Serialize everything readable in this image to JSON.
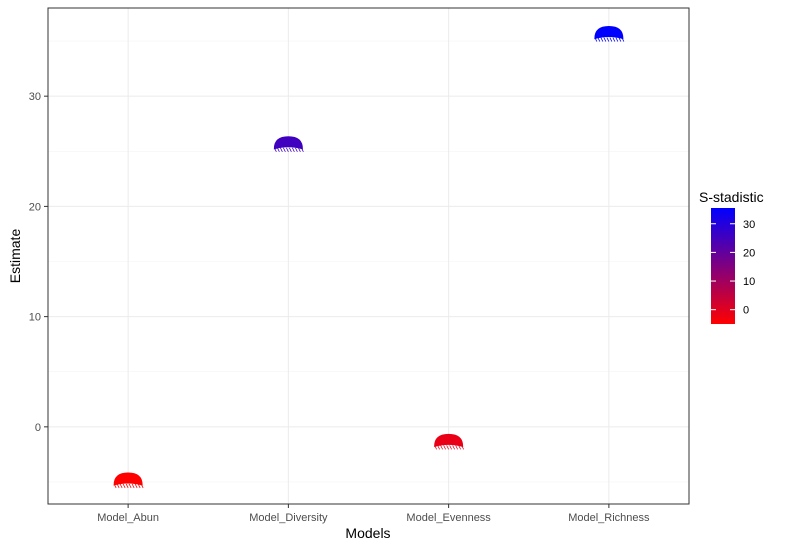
{
  "chart_data": {
    "type": "scatter",
    "xlabel": "Models",
    "ylabel": "Estimate",
    "categories": [
      "Model_Abun",
      "Model_Diversity",
      "Model_Evenness",
      "Model_Richness"
    ],
    "values": [
      -5.0,
      25.5,
      -1.5,
      35.5
    ],
    "color_values": [
      -5.0,
      25.5,
      -1.5,
      35.5
    ],
    "ylim": [
      -7,
      38
    ],
    "y_ticks": [
      0,
      10,
      20,
      30
    ],
    "grid": true,
    "legend": {
      "title": "S-stadistic",
      "placement": "right",
      "range": [
        -5,
        35.5
      ],
      "ticks": [
        0,
        10,
        20,
        30
      ],
      "low_color": "#FF0000",
      "high_color": "#0000FF"
    }
  },
  "colors": {
    "low": "#FF0000",
    "high": "#0000FF",
    "grid": "#EBEBEB",
    "panel_border": "#333333"
  }
}
